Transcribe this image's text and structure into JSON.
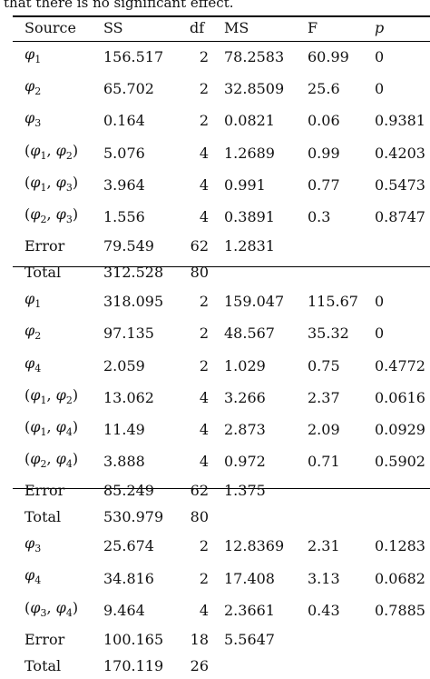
{
  "caption": "that there is no significant effect.",
  "columns": [
    "Source",
    "SS",
    "df",
    "MS",
    "F",
    "p"
  ],
  "blocks": [
    {
      "rows": [
        {
          "source": "φ1",
          "ss": "156.517",
          "df": "2",
          "ms": "78.2583",
          "f": "60.99",
          "p": "0"
        },
        {
          "source": "φ2",
          "ss": "65.702",
          "df": "2",
          "ms": "32.8509",
          "f": "25.6",
          "p": "0"
        },
        {
          "source": "φ3",
          "ss": "0.164",
          "df": "2",
          "ms": "0.0821",
          "f": "0.06",
          "p": "0.9381"
        },
        {
          "source": "(φ1, φ2)",
          "ss": "5.076",
          "df": "4",
          "ms": "1.2689",
          "f": "0.99",
          "p": "0.4203"
        },
        {
          "source": "(φ1, φ3)",
          "ss": "3.964",
          "df": "4",
          "ms": "0.991",
          "f": "0.77",
          "p": "0.5473"
        },
        {
          "source": "(φ2, φ3)",
          "ss": "1.556",
          "df": "4",
          "ms": "0.3891",
          "f": "0.3",
          "p": "0.8747"
        },
        {
          "source": "Error",
          "ss": "79.549",
          "df": "62",
          "ms": "1.2831",
          "f": "",
          "p": ""
        },
        {
          "source": "Total",
          "ss": "312.528",
          "df": "80",
          "ms": "",
          "f": "",
          "p": ""
        }
      ]
    },
    {
      "rows": [
        {
          "source": "φ1",
          "ss": "318.095",
          "df": "2",
          "ms": "159.047",
          "f": "115.67",
          "p": "0"
        },
        {
          "source": "φ2",
          "ss": "97.135",
          "df": "2",
          "ms": "48.567",
          "f": "35.32",
          "p": "0"
        },
        {
          "source": "φ4",
          "ss": "2.059",
          "df": "2",
          "ms": "1.029",
          "f": "0.75",
          "p": "0.4772"
        },
        {
          "source": "(φ1, φ2)",
          "ss": "13.062",
          "df": "4",
          "ms": "3.266",
          "f": "2.37",
          "p": "0.0616"
        },
        {
          "source": "(φ1, φ4)",
          "ss": "11.49",
          "df": "4",
          "ms": "2.873",
          "f": "2.09",
          "p": "0.0929"
        },
        {
          "source": "(φ2, φ4)",
          "ss": "3.888",
          "df": "4",
          "ms": "0.972",
          "f": "0.71",
          "p": "0.5902"
        },
        {
          "source": "Error",
          "ss": "85.249",
          "df": "62",
          "ms": "1.375",
          "f": "",
          "p": ""
        },
        {
          "source": "Total",
          "ss": "530.979",
          "df": "80",
          "ms": "",
          "f": "",
          "p": ""
        }
      ]
    },
    {
      "rows": [
        {
          "source": "φ3",
          "ss": "25.674",
          "df": "2",
          "ms": "12.8369",
          "f": "2.31",
          "p": "0.1283"
        },
        {
          "source": "φ4",
          "ss": "34.816",
          "df": "2",
          "ms": "17.408",
          "f": "3.13",
          "p": "0.0682"
        },
        {
          "source": "(φ3, φ4)",
          "ss": "9.464",
          "df": "4",
          "ms": "2.3661",
          "f": "0.43",
          "p": "0.7885"
        },
        {
          "source": "Error",
          "ss": "100.165",
          "df": "18",
          "ms": "5.5647",
          "f": "",
          "p": ""
        },
        {
          "source": "Total",
          "ss": "170.119",
          "df": "26",
          "ms": "",
          "f": "",
          "p": ""
        }
      ]
    }
  ]
}
